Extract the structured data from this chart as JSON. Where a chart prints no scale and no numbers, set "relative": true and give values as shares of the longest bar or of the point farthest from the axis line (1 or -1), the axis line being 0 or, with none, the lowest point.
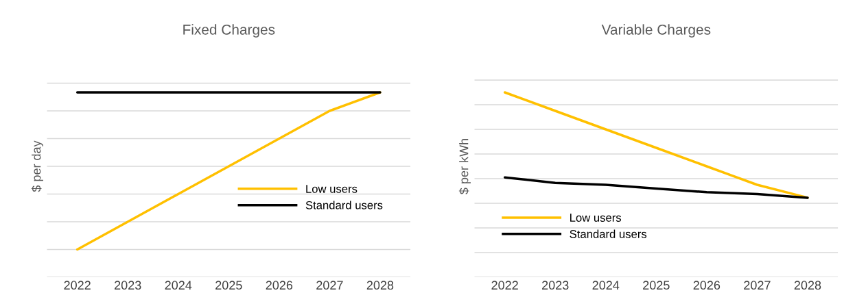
{
  "chart_data": [
    {
      "type": "line",
      "title": "Fixed Charges",
      "ylabel": "$ per day",
      "categories": [
        "2022",
        "2023",
        "2024",
        "2025",
        "2026",
        "2027",
        "2028"
      ],
      "relative": true,
      "grid": "y",
      "legend": "center right",
      "series": [
        {
          "name": "Low users",
          "color": "#ffc000",
          "values": [
            0.15,
            0.3,
            0.45,
            0.6,
            0.75,
            0.9,
            1.0
          ]
        },
        {
          "name": "Standard users",
          "color": "#000000",
          "values": [
            1.0,
            1.0,
            1.0,
            1.0,
            1.0,
            1.0,
            1.0
          ]
        }
      ]
    },
    {
      "type": "line",
      "title": "Variable Charges",
      "ylabel": "$ per kWh",
      "categories": [
        "2022",
        "2023",
        "2024",
        "2025",
        "2026",
        "2027",
        "2028"
      ],
      "relative": true,
      "grid": "y",
      "legend": "bottom left",
      "series": [
        {
          "name": "Low users",
          "color": "#ffc000",
          "values": [
            1.0,
            0.9,
            0.8,
            0.7,
            0.6,
            0.5,
            0.43
          ]
        },
        {
          "name": "Standard users",
          "color": "#000000",
          "values": [
            0.54,
            0.51,
            0.5,
            0.48,
            0.46,
            0.45,
            0.43
          ]
        }
      ]
    }
  ]
}
